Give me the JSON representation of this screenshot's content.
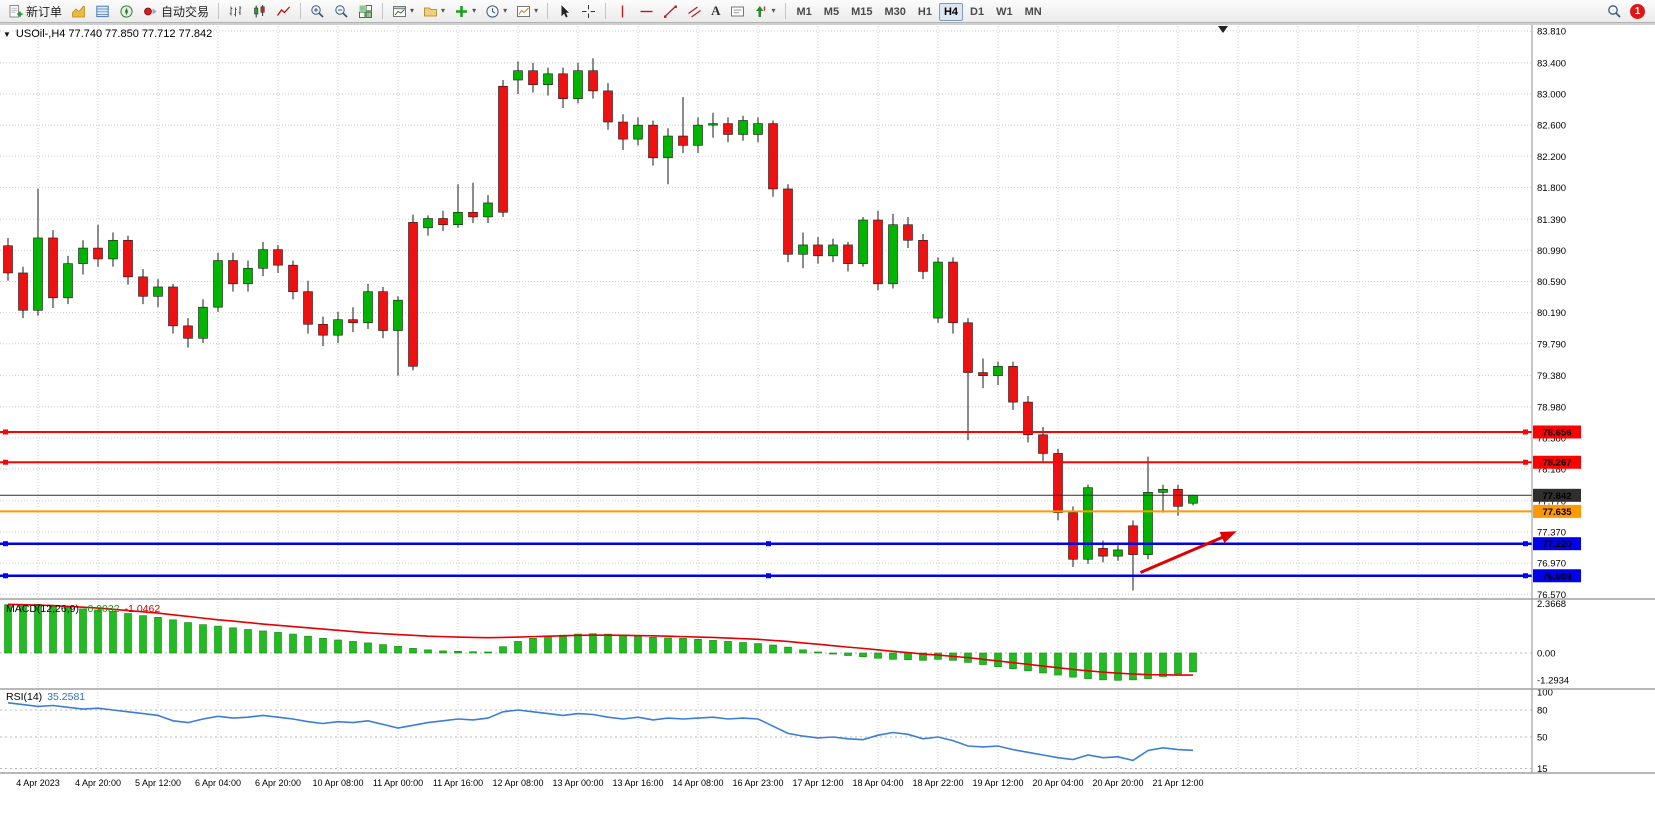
{
  "toolbar": {
    "new_order_label": "新订单",
    "auto_trading_label": "自动交易",
    "text_tool_label": "A",
    "timeframes": [
      "M1",
      "M5",
      "M15",
      "M30",
      "H1",
      "H4",
      "D1",
      "W1",
      "MN"
    ],
    "active_timeframe": "H4",
    "notification_count": "1"
  },
  "icons": {
    "dropdown_arrow": "▾",
    "one_click_arrow": "▼"
  },
  "chart_header": {
    "title": "USOil-,H4 77.740 77.850 77.712 77.842",
    "symbol_period": "USOil-,H4",
    "open": "77.740",
    "high": "77.850",
    "low": "77.712",
    "close": "77.842"
  },
  "indicators": {
    "macd": {
      "name": "MACD(12,26,9)",
      "value": "-0.9032",
      "signal": "-1.0462"
    },
    "rsi": {
      "name": "RSI(14)",
      "value": "35.2581"
    }
  },
  "colors": {
    "bull": "#00B400",
    "bear": "#EE1111",
    "wick": "#1a1a1a",
    "grid": "#cfcfcf",
    "macd_hist": "#22bb22",
    "macd_signal": "#e40000",
    "rsi_line": "#3b7dd8",
    "separator": "#a0a0a0"
  },
  "chart_data": [
    {
      "type": "candlestick",
      "title": "USOil- H4",
      "ylim": [
        76.47,
        83.85
      ],
      "yticks": [
        "83.810",
        "83.400",
        "83.000",
        "82.600",
        "82.200",
        "81.800",
        "81.390",
        "80.990",
        "80.590",
        "80.190",
        "79.790",
        "79.380",
        "78.980",
        "78.580",
        "78.180",
        "77.770",
        "77.370",
        "76.970",
        "76.570"
      ],
      "candles": [
        [
          81.05,
          81.15,
          80.6,
          80.7
        ],
        [
          80.7,
          80.78,
          80.12,
          80.22
        ],
        [
          80.22,
          81.78,
          80.15,
          81.15
        ],
        [
          81.15,
          81.25,
          80.25,
          80.38
        ],
        [
          80.38,
          80.92,
          80.3,
          80.82
        ],
        [
          80.82,
          81.12,
          80.68,
          81.02
        ],
        [
          81.02,
          81.32,
          80.78,
          80.88
        ],
        [
          80.88,
          81.22,
          80.78,
          81.12
        ],
        [
          81.12,
          81.18,
          80.55,
          80.65
        ],
        [
          80.65,
          80.75,
          80.3,
          80.4
        ],
        [
          80.4,
          80.62,
          80.26,
          80.52
        ],
        [
          80.52,
          80.56,
          79.92,
          80.02
        ],
        [
          80.02,
          80.12,
          79.74,
          79.86
        ],
        [
          79.86,
          80.36,
          79.8,
          80.26
        ],
        [
          80.26,
          80.96,
          80.2,
          80.86
        ],
        [
          80.86,
          80.96,
          80.46,
          80.56
        ],
        [
          80.56,
          80.86,
          80.46,
          80.76
        ],
        [
          80.76,
          81.1,
          80.66,
          81.0
        ],
        [
          81.0,
          81.06,
          80.7,
          80.8
        ],
        [
          80.8,
          80.86,
          80.36,
          80.46
        ],
        [
          80.46,
          80.6,
          79.92,
          80.04
        ],
        [
          80.04,
          80.14,
          79.76,
          79.9
        ],
        [
          79.9,
          80.2,
          79.8,
          80.1
        ],
        [
          80.1,
          80.26,
          79.94,
          80.06
        ],
        [
          80.06,
          80.56,
          79.98,
          80.46
        ],
        [
          80.46,
          80.52,
          79.86,
          79.96
        ],
        [
          79.96,
          80.4,
          79.38,
          80.35
        ],
        [
          81.35,
          81.45,
          79.45,
          79.5
        ],
        [
          81.28,
          81.44,
          81.18,
          81.4
        ],
        [
          81.4,
          81.5,
          81.24,
          81.32
        ],
        [
          81.32,
          81.84,
          81.28,
          81.48
        ],
        [
          81.48,
          81.86,
          81.34,
          81.42
        ],
        [
          81.42,
          81.7,
          81.34,
          81.6
        ],
        [
          83.1,
          83.18,
          81.42,
          81.48
        ],
        [
          83.18,
          83.42,
          83.0,
          83.3
        ],
        [
          83.3,
          83.4,
          83.02,
          83.12
        ],
        [
          83.12,
          83.34,
          82.98,
          83.26
        ],
        [
          83.26,
          83.34,
          82.82,
          82.94
        ],
        [
          82.94,
          83.4,
          82.88,
          83.3
        ],
        [
          83.3,
          83.46,
          82.94,
          83.04
        ],
        [
          83.04,
          83.14,
          82.54,
          82.64
        ],
        [
          82.64,
          82.74,
          82.28,
          82.42
        ],
        [
          82.42,
          82.7,
          82.34,
          82.6
        ],
        [
          82.6,
          82.66,
          82.08,
          82.18
        ],
        [
          82.18,
          82.56,
          81.84,
          82.46
        ],
        [
          82.46,
          82.96,
          82.24,
          82.34
        ],
        [
          82.34,
          82.7,
          82.24,
          82.6
        ],
        [
          82.6,
          82.76,
          82.44,
          82.62
        ],
        [
          82.62,
          82.7,
          82.38,
          82.48
        ],
        [
          82.48,
          82.72,
          82.4,
          82.66
        ],
        [
          82.48,
          82.7,
          82.38,
          82.62
        ],
        [
          82.62,
          82.66,
          81.68,
          81.78
        ],
        [
          81.78,
          81.84,
          80.84,
          80.94
        ],
        [
          80.94,
          81.22,
          80.76,
          81.06
        ],
        [
          81.06,
          81.16,
          80.82,
          80.92
        ],
        [
          80.92,
          81.14,
          80.84,
          81.06
        ],
        [
          81.06,
          81.1,
          80.72,
          80.82
        ],
        [
          80.82,
          81.42,
          80.78,
          81.38
        ],
        [
          81.38,
          81.5,
          80.48,
          80.56
        ],
        [
          80.56,
          81.46,
          80.5,
          81.32
        ],
        [
          81.32,
          81.42,
          81.02,
          81.12
        ],
        [
          81.12,
          81.2,
          80.62,
          80.72
        ],
        [
          80.12,
          80.9,
          80.06,
          80.84
        ],
        [
          80.84,
          80.9,
          79.92,
          80.06
        ],
        [
          80.06,
          80.12,
          78.55,
          79.42
        ],
        [
          79.42,
          79.6,
          79.22,
          79.38
        ],
        [
          79.38,
          79.56,
          79.26,
          79.5
        ],
        [
          79.5,
          79.56,
          78.94,
          79.04
        ],
        [
          79.04,
          79.12,
          78.52,
          78.62
        ],
        [
          78.62,
          78.72,
          78.28,
          78.38
        ],
        [
          78.38,
          78.44,
          77.52,
          77.62
        ],
        [
          77.62,
          77.7,
          76.92,
          77.02
        ],
        [
          77.02,
          77.98,
          76.96,
          77.94
        ],
        [
          77.16,
          77.26,
          76.98,
          77.06
        ],
        [
          77.06,
          77.2,
          77.0,
          77.14
        ],
        [
          77.45,
          77.52,
          76.62,
          77.08
        ],
        [
          77.08,
          78.34,
          77.02,
          77.88
        ],
        [
          77.88,
          77.98,
          77.62,
          77.92
        ],
        [
          77.92,
          77.98,
          77.58,
          77.7
        ],
        [
          77.74,
          77.85,
          77.712,
          77.842
        ]
      ],
      "hlines": [
        {
          "price": 78.656,
          "label": "78.656",
          "color": "#FF0000",
          "width": 2,
          "handles": "ends"
        },
        {
          "price": 78.267,
          "label": "78.267",
          "color": "#FF0000",
          "width": 2,
          "handles": "ends"
        },
        {
          "price": 77.842,
          "label": "77.842",
          "color": "#2e2e2e",
          "width": 1,
          "handles": "none"
        },
        {
          "price": 77.635,
          "label": "77.635",
          "color": "#FF9900",
          "width": 2,
          "handles": "none"
        },
        {
          "price": 77.22,
          "label": "77.220",
          "color": "#0000EE",
          "width": 2.5,
          "handles": "all"
        },
        {
          "price": 76.808,
          "label": "76.808",
          "color": "#0000EE",
          "width": 2.5,
          "handles": "all"
        }
      ],
      "annotations": [
        {
          "type": "arrow",
          "color": "#E00000",
          "from_bar": 75.5,
          "from_price": 76.85,
          "to_bar": 81.3,
          "to_price": 77.33
        }
      ]
    },
    {
      "type": "macd-histogram",
      "label": "MACD(12,26,9)",
      "yticks": [
        "2.3668",
        "0.00",
        "-1.2934"
      ],
      "histogram": [
        2.3,
        2.28,
        2.32,
        2.25,
        2.18,
        2.1,
        2.05,
        1.98,
        1.88,
        1.78,
        1.7,
        1.58,
        1.45,
        1.35,
        1.28,
        1.2,
        1.12,
        1.05,
        0.98,
        0.9,
        0.8,
        0.7,
        0.62,
        0.55,
        0.48,
        0.4,
        0.32,
        0.22,
        0.15,
        0.1,
        0.08,
        0.06,
        0.05,
        0.3,
        0.55,
        0.7,
        0.8,
        0.85,
        0.9,
        0.92,
        0.9,
        0.85,
        0.8,
        0.75,
        0.72,
        0.7,
        0.65,
        0.6,
        0.55,
        0.5,
        0.45,
        0.38,
        0.28,
        0.15,
        0.05,
        -0.05,
        -0.12,
        -0.18,
        -0.25,
        -0.3,
        -0.32,
        -0.35,
        -0.3,
        -0.35,
        -0.45,
        -0.55,
        -0.65,
        -0.75,
        -0.85,
        -0.95,
        -1.05,
        -1.15,
        -1.22,
        -1.28,
        -1.3,
        -1.28,
        -1.22,
        -1.12,
        -1.0,
        -0.9
      ],
      "signal": [
        2.32,
        2.3,
        2.28,
        2.26,
        2.22,
        2.18,
        2.14,
        2.08,
        2.02,
        1.96,
        1.9,
        1.82,
        1.74,
        1.66,
        1.58,
        1.52,
        1.45,
        1.38,
        1.32,
        1.26,
        1.2,
        1.14,
        1.08,
        1.02,
        0.96,
        0.92,
        0.88,
        0.84,
        0.8,
        0.78,
        0.76,
        0.74,
        0.73,
        0.74,
        0.76,
        0.78,
        0.8,
        0.82,
        0.84,
        0.85,
        0.85,
        0.84,
        0.83,
        0.82,
        0.8,
        0.78,
        0.76,
        0.74,
        0.71,
        0.68,
        0.65,
        0.6,
        0.55,
        0.48,
        0.42,
        0.35,
        0.28,
        0.22,
        0.15,
        0.08,
        0.02,
        -0.05,
        -0.1,
        -0.16,
        -0.22,
        -0.3,
        -0.38,
        -0.46,
        -0.54,
        -0.62,
        -0.7,
        -0.78,
        -0.85,
        -0.91,
        -0.96,
        -1.0,
        -1.03,
        -1.04,
        -1.05,
        -1.05
      ]
    },
    {
      "type": "rsi-line",
      "label": "RSI(14)",
      "yticks": [
        {
          "value": 100,
          "label": "100"
        },
        {
          "value": 80,
          "label": "80"
        },
        {
          "value": 50,
          "label": "50"
        },
        {
          "value": 15,
          "label": "15"
        }
      ],
      "levels": [
        80,
        50,
        15
      ],
      "values": [
        88,
        86,
        84,
        85,
        83,
        81,
        82,
        80,
        78,
        76,
        74,
        68,
        66,
        70,
        73,
        71,
        72,
        74,
        72,
        70,
        67,
        65,
        67,
        66,
        68,
        64,
        60,
        63,
        66,
        68,
        70,
        69,
        71,
        78,
        80,
        78,
        76,
        74,
        76,
        75,
        72,
        70,
        72,
        69,
        71,
        70,
        71,
        72,
        70,
        71,
        70,
        62,
        54,
        51,
        49,
        50,
        48,
        47,
        52,
        55,
        53,
        48,
        50,
        46,
        40,
        39,
        40,
        36,
        33,
        30,
        27,
        25,
        30,
        27,
        28,
        24,
        35,
        38,
        36,
        35.26
      ]
    }
  ],
  "time_axis": [
    "4 Apr 2023",
    "4 Apr 20:00",
    "5 Apr 12:00",
    "6 Apr 04:00",
    "6 Apr 20:00",
    "10 Apr 08:00",
    "11 Apr 00:00",
    "11 Apr 16:00",
    "12 Apr 08:00",
    "13 Apr 00:00",
    "13 Apr 16:00",
    "14 Apr 08:00",
    "16 Apr 23:00",
    "17 Apr 12:00",
    "18 Apr 04:00",
    "18 Apr 22:00",
    "19 Apr 12:00",
    "20 Apr 04:00",
    "20 Apr 20:00",
    "21 Apr 12:00"
  ]
}
